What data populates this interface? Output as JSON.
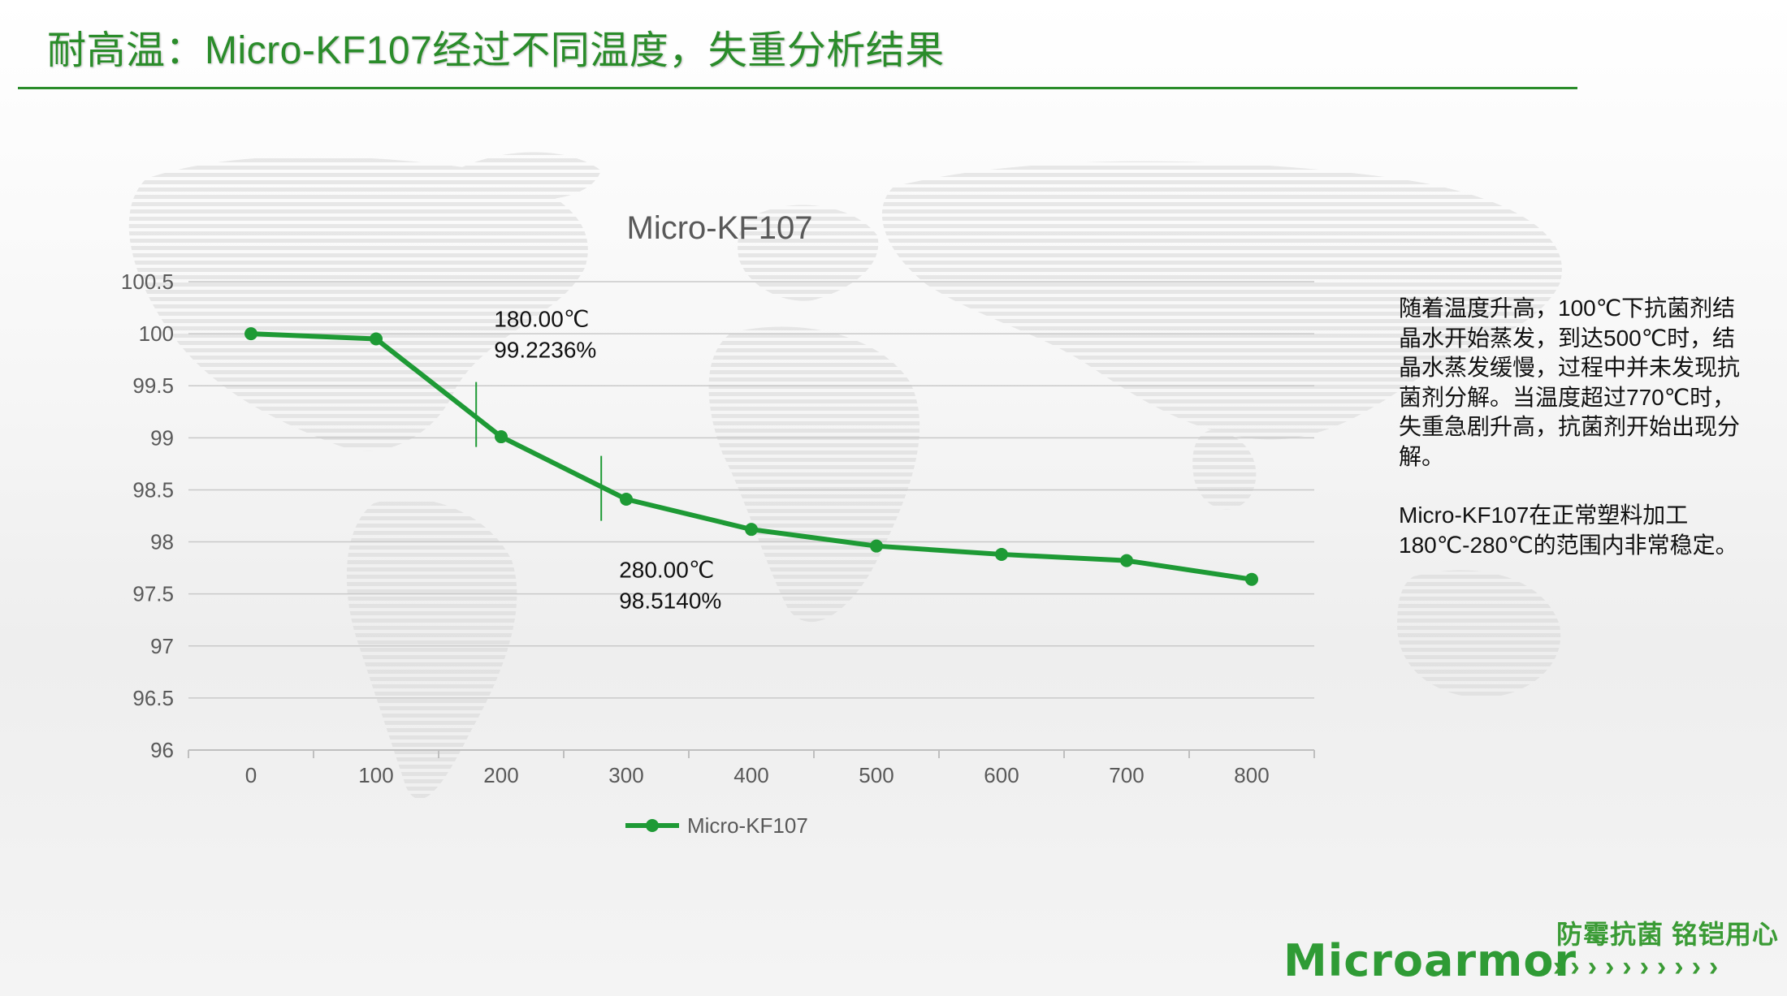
{
  "slide": {
    "title": "耐高温：Micro-KF107经过不同温度，失重分析结果",
    "accent_color": "#2a8c2a"
  },
  "description": {
    "paragraph1": "随着温度升高，100℃下抗菌剂结晶水开始蒸发，到达500℃时，结晶水蒸发缓慢，过程中并未发现抗菌剂分解。当温度超过770℃时，失重急剧升高，抗菌剂开始出现分解。",
    "paragraph2": "Micro-KF107在正常塑料加工180℃-280℃的范围内非常稳定。"
  },
  "branding": {
    "slogan": "防霉抗菌 铭铠用心",
    "logo_text": "Microarmor",
    "arrows": "››››››››››"
  },
  "chart_data": {
    "type": "line",
    "title": "Micro-KF107",
    "xlabel": "",
    "ylabel": "",
    "x": [
      0,
      100,
      200,
      300,
      400,
      500,
      600,
      700,
      800
    ],
    "x_tick_labels": [
      "0",
      "100",
      "200",
      "300",
      "400",
      "500",
      "600",
      "700",
      "800"
    ],
    "y_tick_labels": [
      "96",
      "96.5",
      "97",
      "97.5",
      "98",
      "98.5",
      "99",
      "99.5",
      "100",
      "100.5"
    ],
    "ylim": [
      96,
      100.5
    ],
    "grid": true,
    "legend_position": "bottom",
    "series": [
      {
        "name": "Micro-KF107",
        "color": "#1e9a35",
        "values": [
          100.0,
          99.95,
          99.01,
          98.41,
          98.12,
          97.96,
          97.88,
          97.82,
          97.64
        ]
      }
    ],
    "annotations": [
      {
        "x": 180,
        "y": 99.2236,
        "line1": "180.00℃",
        "line2": "99.2236%"
      },
      {
        "x": 280,
        "y": 98.514,
        "line1": "280.00℃",
        "line2": "98.5140%"
      }
    ]
  }
}
